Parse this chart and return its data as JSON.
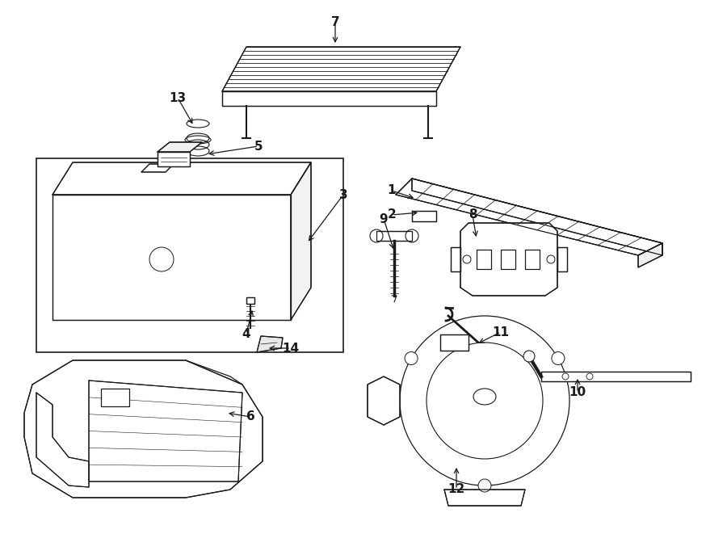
{
  "bg_color": "#ffffff",
  "line_color": "#1a1a1a",
  "lw": 0.9,
  "fig_w": 9.0,
  "fig_h": 6.61,
  "dpi": 100
}
